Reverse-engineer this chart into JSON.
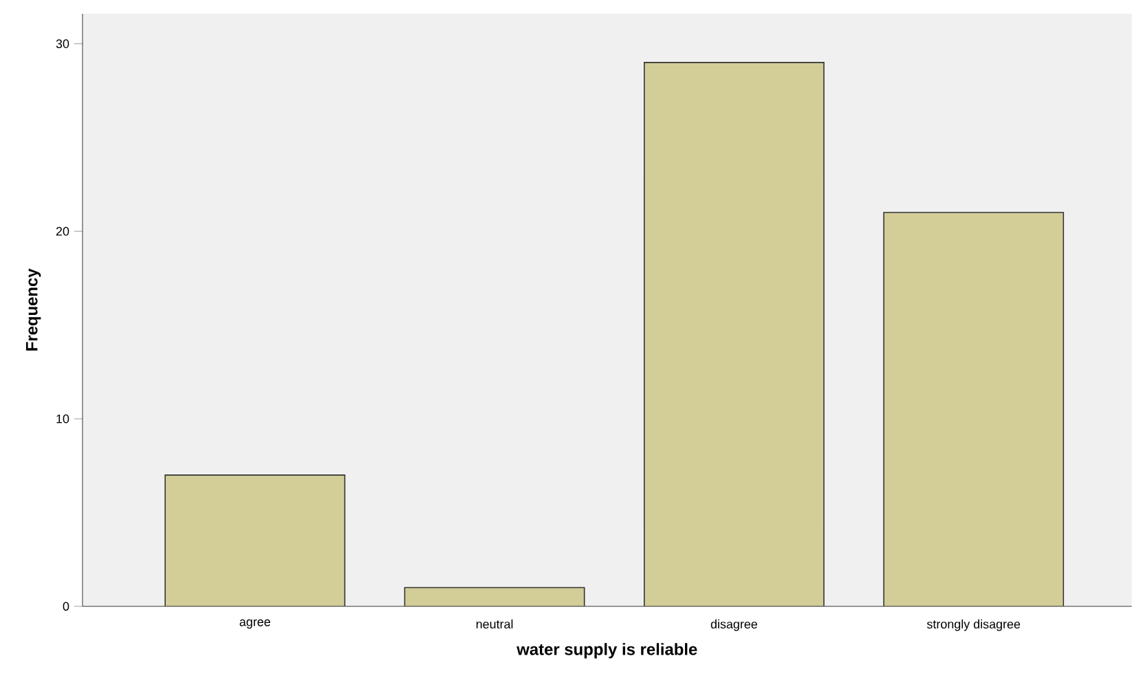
{
  "chart_data": {
    "type": "bar",
    "xlabel": "water supply is reliable",
    "ylabel": "Frequency",
    "categories": [
      "agree",
      "neutral",
      "disagree",
      "strongly disagree"
    ],
    "values": [
      7,
      1,
      29,
      21
    ],
    "color": "#d3cd98",
    "ylim": [
      0,
      31.6
    ],
    "yticks": [
      0,
      10,
      20,
      30
    ]
  }
}
